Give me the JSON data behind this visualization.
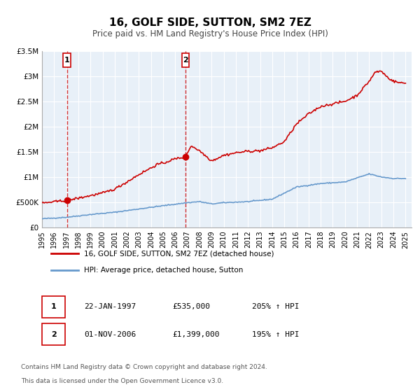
{
  "title": "16, GOLF SIDE, SUTTON, SM2 7EZ",
  "subtitle": "Price paid vs. HM Land Registry's House Price Index (HPI)",
  "xlabel": "",
  "ylabel": "",
  "ylim": [
    0,
    3500000
  ],
  "xlim_start": 1995.0,
  "xlim_end": 2025.5,
  "background_color": "#ffffff",
  "plot_bg_color": "#e8f0f8",
  "grid_color": "#ffffff",
  "sale1_date": 1997.055,
  "sale1_price": 535000,
  "sale1_label": "1",
  "sale1_text": "22-JAN-1997",
  "sale1_amount": "£535,000",
  "sale1_hpi": "205% ↑ HPI",
  "sale2_date": 2006.833,
  "sale2_price": 1399000,
  "sale2_label": "2",
  "sale2_text": "01-NOV-2006",
  "sale2_amount": "£1,399,000",
  "sale2_hpi": "195% ↑ HPI",
  "line1_color": "#cc0000",
  "line2_color": "#6699cc",
  "line1_label": "16, GOLF SIDE, SUTTON, SM2 7EZ (detached house)",
  "line2_label": "HPI: Average price, detached house, Sutton",
  "footer1": "Contains HM Land Registry data © Crown copyright and database right 2024.",
  "footer2": "This data is licensed under the Open Government Licence v3.0.",
  "yticks": [
    0,
    500000,
    1000000,
    1500000,
    2000000,
    2500000,
    3000000,
    3500000
  ],
  "ytick_labels": [
    "£0",
    "£500K",
    "£1M",
    "£1.5M",
    "£2M",
    "£2.5M",
    "£3M",
    "£3.5M"
  ],
  "xticks": [
    1995,
    1996,
    1997,
    1998,
    1999,
    2000,
    2001,
    2002,
    2003,
    2004,
    2005,
    2006,
    2007,
    2008,
    2009,
    2010,
    2011,
    2012,
    2013,
    2014,
    2015,
    2016,
    2017,
    2018,
    2019,
    2020,
    2021,
    2022,
    2023,
    2024,
    2025
  ]
}
